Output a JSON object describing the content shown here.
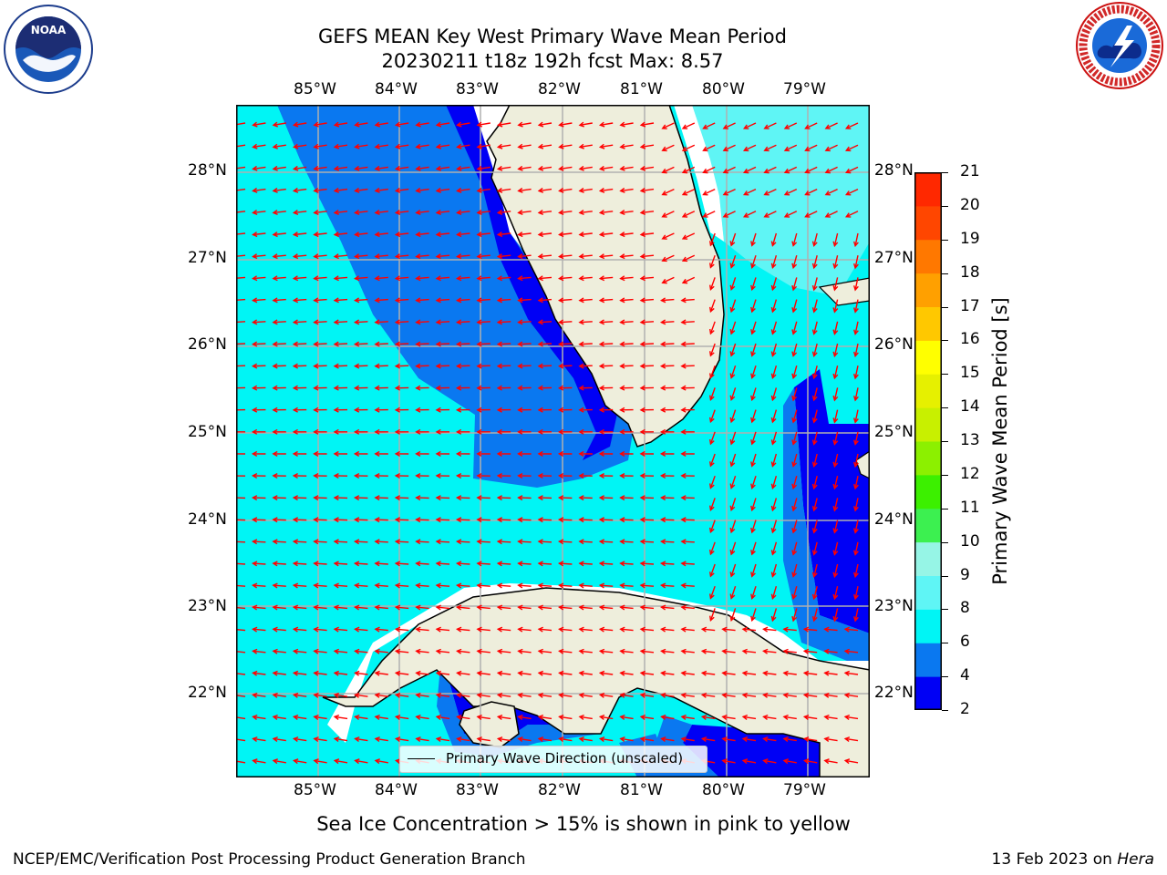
{
  "title_line1": "GEFS MEAN Key West Primary Wave Mean Period",
  "title_line2": "20230211 t18z 192h fcst   Max: 8.57",
  "lon_labels": [
    "85°W",
    "84°W",
    "83°W",
    "82°W",
    "81°W",
    "80°W",
    "79°W"
  ],
  "lat_labels": [
    "28°N",
    "27°N",
    "26°N",
    "25°N",
    "24°N",
    "23°N",
    "22°N"
  ],
  "colorbar": {
    "label": "Primary Wave Mean Period [s]",
    "ticks": [
      "21",
      "20",
      "19",
      "18",
      "17",
      "16",
      "15",
      "14",
      "13",
      "12",
      "11",
      "10",
      "9",
      "8",
      "6",
      "4",
      "2"
    ],
    "colors": [
      "#0000f5",
      "#0a78f0",
      "#00f5f5",
      "#5ff5f5",
      "#96f5e6",
      "#b4f5c8",
      "#3cf050",
      "#3cf000",
      "#8cf000",
      "#c8f000",
      "#e6f000",
      "#ffff00",
      "#ffc800",
      "#ffa000",
      "#ff7800",
      "#ff4600",
      "#ff2800",
      "#ff0000"
    ]
  },
  "legend_label": "Primary Wave Direction (unscaled)",
  "note": "Sea Ice Concentration > 15% is shown in pink to yellow",
  "footer_left": "NCEP/EMC/Verification Post Processing Product Generation Branch",
  "footer_right_date": "13 Feb 2023 on ",
  "footer_right_machine": "Hera",
  "logos": [
    "noaa-logo",
    "nws-logo"
  ]
}
